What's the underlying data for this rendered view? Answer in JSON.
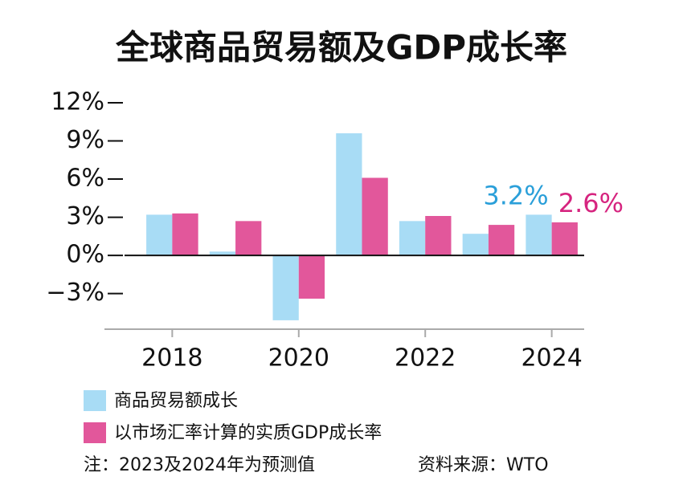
{
  "chart_data": {
    "type": "bar",
    "title": "全球商品贸易额及GDP成长率",
    "categories": [
      "2018",
      null,
      "2020",
      null,
      "2022",
      null,
      "2024"
    ],
    "series": [
      {
        "name": "商品贸易额成长",
        "color": "#a8dcf5",
        "label_color": "#2a9fd9",
        "values": [
          3.2,
          0.3,
          -5.1,
          9.6,
          2.7,
          1.7,
          3.2
        ],
        "value_labels": [
          null,
          null,
          null,
          null,
          null,
          null,
          "3.2%"
        ]
      },
      {
        "name": "以市场汇率计算的实质GDP成长率",
        "color": "#e2579b",
        "label_color": "#d6247f",
        "values": [
          3.3,
          2.7,
          -3.4,
          6.1,
          3.1,
          2.4,
          2.6
        ],
        "value_labels": [
          null,
          null,
          null,
          null,
          null,
          null,
          "2.6%"
        ]
      }
    ],
    "ylim": [
      -5.8,
      12
    ],
    "yticks": [
      {
        "value": 12,
        "label": "12%"
      },
      {
        "value": 9,
        "label": "9%"
      },
      {
        "value": 6,
        "label": "6%"
      },
      {
        "value": 3,
        "label": "3%"
      },
      {
        "value": 0,
        "label": "0%"
      },
      {
        "value": -3,
        "label": "−3%"
      }
    ],
    "note": "注：2023及2024年为预测值",
    "source": "资料来源：WTO"
  }
}
